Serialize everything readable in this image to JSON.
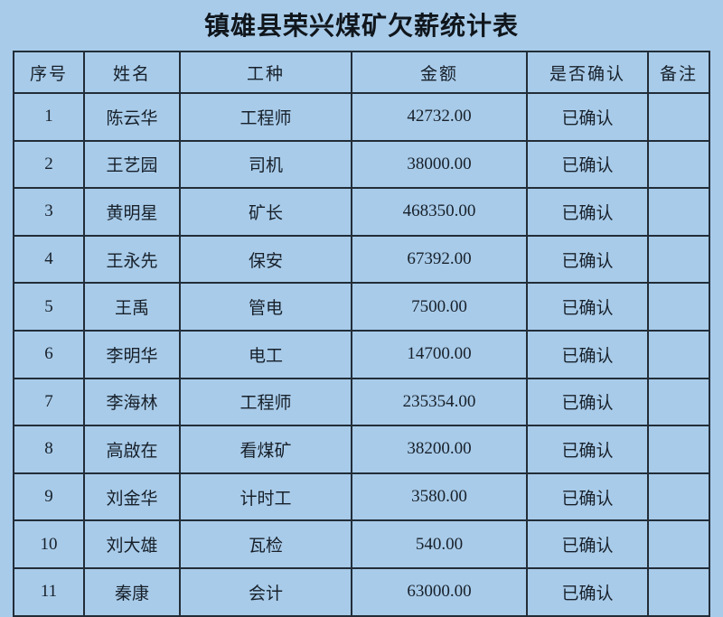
{
  "page": {
    "title": "镇雄县荣兴煤矿欠薪统计表",
    "background_color": "#a8cbe9",
    "border_color": "#222d38",
    "text_color": "#17202a"
  },
  "table": {
    "columns": [
      "序号",
      "姓名",
      "工种",
      "金额",
      "是否确认",
      "备注"
    ],
    "column_keys": [
      "no",
      "name",
      "job",
      "amount",
      "confirmed",
      "remark"
    ],
    "rows": [
      {
        "no": "1",
        "name": "陈云华",
        "job": "工程师",
        "amount": "42732.00",
        "confirmed": "已确认",
        "remark": ""
      },
      {
        "no": "2",
        "name": "王艺园",
        "job": "司机",
        "amount": "38000.00",
        "confirmed": "已确认",
        "remark": ""
      },
      {
        "no": "3",
        "name": "黄明星",
        "job": "矿长",
        "amount": "468350.00",
        "confirmed": "已确认",
        "remark": ""
      },
      {
        "no": "4",
        "name": "王永先",
        "job": "保安",
        "amount": "67392.00",
        "confirmed": "已确认",
        "remark": ""
      },
      {
        "no": "5",
        "name": "王禹",
        "job": "管电",
        "amount": "7500.00",
        "confirmed": "已确认",
        "remark": ""
      },
      {
        "no": "6",
        "name": "李明华",
        "job": "电工",
        "amount": "14700.00",
        "confirmed": "已确认",
        "remark": ""
      },
      {
        "no": "7",
        "name": "李海林",
        "job": "工程师",
        "amount": "235354.00",
        "confirmed": "已确认",
        "remark": ""
      },
      {
        "no": "8",
        "name": "高啟在",
        "job": "看煤矿",
        "amount": "38200.00",
        "confirmed": "已确认",
        "remark": ""
      },
      {
        "no": "9",
        "name": "刘金华",
        "job": "计时工",
        "amount": "3580.00",
        "confirmed": "已确认",
        "remark": ""
      },
      {
        "no": "10",
        "name": "刘大雄",
        "job": "瓦检",
        "amount": "540.00",
        "confirmed": "已确认",
        "remark": ""
      },
      {
        "no": "11",
        "name": "秦康",
        "job": "会计",
        "amount": "63000.00",
        "confirmed": "已确认",
        "remark": ""
      }
    ]
  }
}
